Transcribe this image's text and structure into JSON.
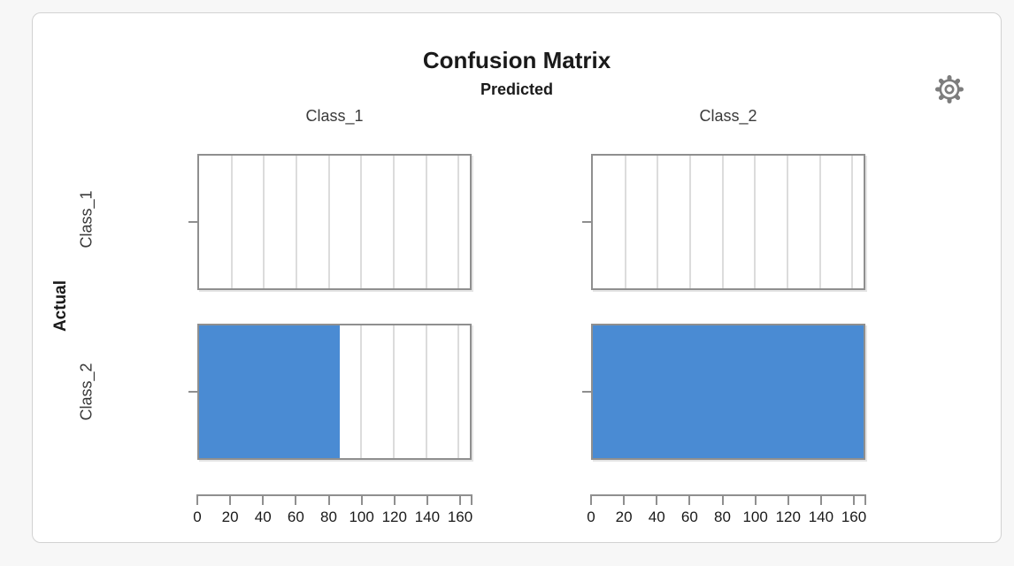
{
  "title": "Confusion Matrix",
  "predicted_label": "Predicted",
  "actual_label": "Actual",
  "col_labels": [
    "Class_1",
    "Class_2"
  ],
  "row_labels": [
    "Class_1",
    "Class_2"
  ],
  "settings_icon": "gear-icon",
  "colors": {
    "bar": "#4a8bd3",
    "grid": "#dcdcdc",
    "frame": "#8f8f8f",
    "page_bg": "#f7f7f7",
    "card_bg": "#ffffff",
    "card_border": "#d2d2d2",
    "icon": "#7d7d7d"
  },
  "chart_data": {
    "type": "bar",
    "orientation": "horizontal",
    "title": "Confusion Matrix",
    "x_title": "Predicted",
    "y_title": "Actual",
    "columns": [
      "Class_1",
      "Class_2"
    ],
    "rows": [
      "Class_1",
      "Class_2"
    ],
    "values": [
      [
        0,
        0
      ],
      [
        87,
        167
      ]
    ],
    "xlim": [
      0,
      167
    ],
    "x_ticks": [
      0,
      20,
      40,
      60,
      80,
      100,
      120,
      140,
      160
    ],
    "gridline_step": 20,
    "grid": true,
    "legend": "none",
    "bar_color": "#4a8bd3"
  }
}
